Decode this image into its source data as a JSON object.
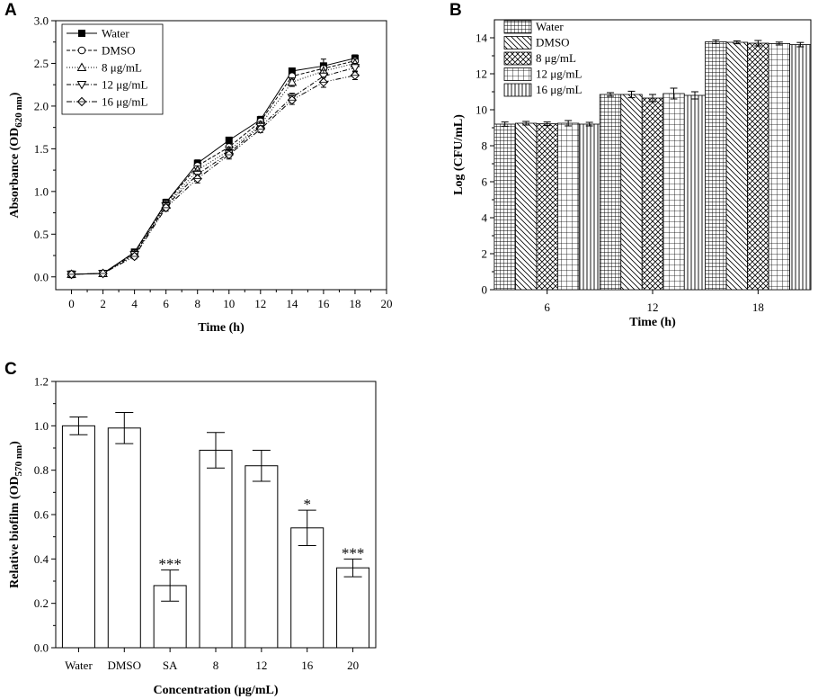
{
  "chart_data": [
    {
      "panel": "A",
      "type": "line",
      "xlabel": "Time (h)",
      "ylabel_main": "Absorbance (OD",
      "ylabel_sub": "620 nm",
      "ylabel_end": ")",
      "xlim": [
        -1,
        20
      ],
      "ylim": [
        -0.15,
        3.0
      ],
      "xticks": [
        "0",
        "2",
        "4",
        "6",
        "8",
        "10",
        "12",
        "14",
        "16",
        "18",
        "20"
      ],
      "yticks": [
        "0.0",
        "0.5",
        "1.0",
        "1.5",
        "2.0",
        "2.5",
        "3.0"
      ],
      "x": [
        0,
        2,
        4,
        6,
        8,
        10,
        12,
        14,
        16,
        18
      ],
      "series": [
        {
          "name": "Water",
          "marker": "square-filled",
          "dash": "",
          "values": [
            0.03,
            0.04,
            0.29,
            0.87,
            1.33,
            1.6,
            1.84,
            2.41,
            2.47,
            2.56
          ],
          "err": [
            0.04,
            0.02,
            0.03,
            0.04,
            0.04,
            0.03,
            0.04,
            0.03,
            0.08,
            0.04
          ]
        },
        {
          "name": "DMSO",
          "marker": "circle",
          "dash": "4,2",
          "values": [
            0.03,
            0.04,
            0.28,
            0.86,
            1.3,
            1.52,
            1.82,
            2.35,
            2.44,
            2.53
          ],
          "err": [
            0.03,
            0.02,
            0.03,
            0.04,
            0.05,
            0.04,
            0.04,
            0.04,
            0.06,
            0.05
          ]
        },
        {
          "name": "8 μg/mL",
          "marker": "triangle-up",
          "dash": "1,2",
          "values": [
            0.03,
            0.04,
            0.27,
            0.84,
            1.25,
            1.48,
            1.78,
            2.28,
            2.41,
            2.5
          ],
          "err": [
            0.03,
            0.02,
            0.03,
            0.04,
            0.05,
            0.04,
            0.04,
            0.05,
            0.07,
            0.05
          ]
        },
        {
          "name": "12 μg/mL",
          "marker": "triangle-down",
          "dash": "5,2,1,2",
          "values": [
            0.03,
            0.04,
            0.26,
            0.83,
            1.2,
            1.45,
            1.76,
            2.1,
            2.35,
            2.45
          ],
          "err": [
            0.03,
            0.02,
            0.03,
            0.04,
            0.05,
            0.05,
            0.04,
            0.05,
            0.07,
            0.05
          ]
        },
        {
          "name": "16 μg/mL",
          "marker": "diamond",
          "dash": "6,2,1,2,1,2",
          "values": [
            0.03,
            0.04,
            0.24,
            0.81,
            1.15,
            1.43,
            1.73,
            2.07,
            2.28,
            2.36
          ],
          "err": [
            0.03,
            0.02,
            0.03,
            0.04,
            0.05,
            0.05,
            0.04,
            0.05,
            0.06,
            0.05
          ]
        }
      ]
    },
    {
      "panel": "B",
      "type": "bar",
      "xlabel": "Time (h)",
      "ylabel": "Log (CFU/mL)",
      "ylim": [
        0,
        15
      ],
      "yticks": [
        "0",
        "2",
        "4",
        "6",
        "8",
        "10",
        "12",
        "14"
      ],
      "categories": [
        "6",
        "12",
        "18"
      ],
      "series": [
        {
          "name": "Water",
          "pattern": "grid-fine",
          "values": [
            9.2,
            10.85,
            13.78
          ],
          "err": [
            0.12,
            0.1,
            0.1
          ]
        },
        {
          "name": "DMSO",
          "pattern": "diag-back",
          "values": [
            9.25,
            10.85,
            13.75
          ],
          "err": [
            0.1,
            0.18,
            0.08
          ]
        },
        {
          "name": "8 μg/mL",
          "pattern": "crosshatch",
          "values": [
            9.22,
            10.65,
            13.7
          ],
          "err": [
            0.1,
            0.2,
            0.15
          ]
        },
        {
          "name": "12 μg/mL",
          "pattern": "grid-coarse",
          "values": [
            9.25,
            10.9,
            13.68
          ],
          "err": [
            0.15,
            0.3,
            0.08
          ]
        },
        {
          "name": "16 μg/mL",
          "pattern": "vertical",
          "values": [
            9.2,
            10.8,
            13.62
          ],
          "err": [
            0.1,
            0.2,
            0.12
          ]
        }
      ]
    },
    {
      "panel": "C",
      "type": "bar",
      "xlabel": "Concentration (μg/mL)",
      "ylabel_main": "Relative biofilm (OD",
      "ylabel_sub": "570 nm",
      "ylabel_end": ")",
      "ylim": [
        0,
        1.2
      ],
      "yticks": [
        "0.0",
        "0.2",
        "0.4",
        "0.6",
        "0.8",
        "1.0",
        "1.2"
      ],
      "categories": [
        "Water",
        "DMSO",
        "SA",
        "8",
        "12",
        "16",
        "20"
      ],
      "values": [
        1.0,
        0.99,
        0.28,
        0.89,
        0.82,
        0.54,
        0.36
      ],
      "err": [
        0.04,
        0.07,
        0.07,
        0.08,
        0.07,
        0.08,
        0.04
      ],
      "annotations": [
        "",
        "",
        "***",
        "",
        "",
        "*",
        "***"
      ]
    }
  ],
  "panel_labels": [
    "A",
    "B",
    "C"
  ]
}
